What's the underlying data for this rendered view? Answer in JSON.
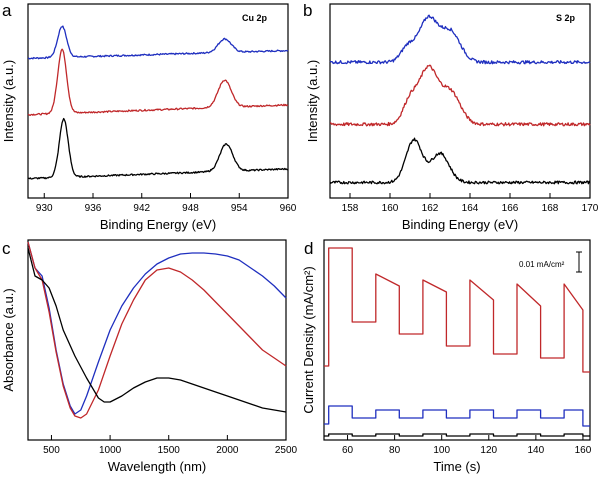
{
  "chart_data": [
    {
      "panel": "a",
      "type": "line",
      "annotation": "Cu 2p",
      "xlabel": "Binding Energy (eV)",
      "ylabel": "Intensity (a.u.)",
      "xlim": [
        928,
        960
      ],
      "ylim": [
        0,
        1
      ],
      "xticks": [
        930,
        936,
        942,
        948,
        954,
        960
      ],
      "yticks_shown": false,
      "series": [
        {
          "name": "top",
          "color": "#1f2fbf",
          "baseline": 0.72,
          "peaks": [
            {
              "center": 932.2,
              "height": 0.16,
              "width": 0.55
            },
            {
              "center": 952.2,
              "height": 0.07,
              "width": 0.8
            }
          ],
          "slope": 0.04,
          "noise": 0.004
        },
        {
          "name": "middle",
          "color": "#c0282a",
          "baseline": 0.43,
          "peaks": [
            {
              "center": 932.2,
              "height": 0.33,
              "width": 0.55
            },
            {
              "center": 952.2,
              "height": 0.14,
              "width": 0.8
            }
          ],
          "slope": 0.05,
          "noise": 0.004
        },
        {
          "name": "bottom",
          "color": "#000000",
          "baseline": 0.1,
          "peaks": [
            {
              "center": 932.4,
              "height": 0.3,
              "width": 0.55
            },
            {
              "center": 952.4,
              "height": 0.14,
              "width": 0.8
            }
          ],
          "slope": 0.05,
          "noise": 0.004
        }
      ]
    },
    {
      "panel": "b",
      "type": "line",
      "annotation": "S 2p",
      "xlabel": "Binding Energy (eV)",
      "ylabel": "Intensity (a.u.)",
      "xlim": [
        157,
        170
      ],
      "ylim": [
        0,
        1
      ],
      "xticks": [
        158,
        160,
        162,
        164,
        166,
        168,
        170
      ],
      "yticks_shown": false,
      "series": [
        {
          "name": "top",
          "color": "#1f2fbf",
          "baseline": 0.7,
          "peaks": [
            {
              "center": 160.9,
              "height": 0.08,
              "width": 0.35
            },
            {
              "center": 161.9,
              "height": 0.22,
              "width": 0.45
            },
            {
              "center": 163.0,
              "height": 0.16,
              "width": 0.5
            }
          ],
          "slope": 0.0,
          "noise": 0.008
        },
        {
          "name": "middle",
          "color": "#c0282a",
          "baseline": 0.38,
          "peaks": [
            {
              "center": 161.0,
              "height": 0.12,
              "width": 0.35
            },
            {
              "center": 161.9,
              "height": 0.28,
              "width": 0.45
            },
            {
              "center": 163.0,
              "height": 0.17,
              "width": 0.5
            }
          ],
          "slope": 0.0,
          "noise": 0.008
        },
        {
          "name": "bottom",
          "color": "#000000",
          "baseline": 0.08,
          "peaks": [
            {
              "center": 161.2,
              "height": 0.22,
              "width": 0.4
            },
            {
              "center": 162.5,
              "height": 0.15,
              "width": 0.45
            }
          ],
          "slope": 0.0,
          "noise": 0.007
        }
      ]
    },
    {
      "panel": "c",
      "type": "line",
      "xlabel": "Wavelength (nm)",
      "ylabel": "Absorbance (a.u.)",
      "xlim": [
        300,
        2500
      ],
      "ylim": [
        0,
        1
      ],
      "xticks": [
        500,
        1000,
        1500,
        2000,
        2500
      ],
      "yticks_shown": false,
      "series": [
        {
          "name": "blue",
          "color": "#1f2fbf",
          "x": [
            300,
            360,
            420,
            480,
            540,
            600,
            660,
            700,
            750,
            800,
            900,
            1000,
            1100,
            1200,
            1300,
            1400,
            1500,
            1600,
            1700,
            1800,
            1900,
            2000,
            2100,
            2200,
            2300,
            2400,
            2500
          ],
          "y": [
            0.99,
            0.86,
            0.82,
            0.66,
            0.45,
            0.28,
            0.17,
            0.13,
            0.15,
            0.22,
            0.39,
            0.55,
            0.67,
            0.76,
            0.83,
            0.88,
            0.91,
            0.93,
            0.935,
            0.935,
            0.93,
            0.92,
            0.9,
            0.86,
            0.82,
            0.77,
            0.71
          ]
        },
        {
          "name": "red",
          "color": "#c0282a",
          "x": [
            300,
            360,
            420,
            480,
            540,
            600,
            660,
            700,
            750,
            800,
            900,
            1000,
            1100,
            1200,
            1300,
            1400,
            1500,
            1600,
            1700,
            1800,
            1900,
            2000,
            2100,
            2200,
            2300,
            2400,
            2500
          ],
          "y": [
            0.99,
            0.86,
            0.8,
            0.64,
            0.44,
            0.27,
            0.16,
            0.12,
            0.11,
            0.13,
            0.25,
            0.42,
            0.58,
            0.7,
            0.8,
            0.85,
            0.86,
            0.84,
            0.8,
            0.75,
            0.69,
            0.63,
            0.57,
            0.51,
            0.45,
            0.41,
            0.37
          ]
        },
        {
          "name": "black",
          "color": "#000000",
          "x": [
            300,
            360,
            420,
            480,
            540,
            600,
            700,
            800,
            900,
            950,
            1000,
            1100,
            1200,
            1300,
            1400,
            1500,
            1600,
            1700,
            1800,
            1900,
            2000,
            2100,
            2200,
            2300,
            2400,
            2500
          ],
          "y": [
            0.96,
            0.82,
            0.8,
            0.76,
            0.67,
            0.55,
            0.42,
            0.31,
            0.21,
            0.19,
            0.19,
            0.22,
            0.26,
            0.29,
            0.31,
            0.31,
            0.3,
            0.28,
            0.26,
            0.24,
            0.22,
            0.2,
            0.18,
            0.16,
            0.15,
            0.14
          ]
        }
      ]
    },
    {
      "panel": "d",
      "type": "line",
      "xlabel": "Time (s)",
      "ylabel": "Current Density (mA/cm²)",
      "xlim": [
        50,
        163
      ],
      "ylim": [
        0,
        1
      ],
      "xticks": [
        60,
        80,
        100,
        120,
        140,
        160
      ],
      "yticks_shown": false,
      "scale_bar_label": "0.01 mA/cm²",
      "light_on_times": [
        52,
        72,
        92,
        112,
        132,
        152
      ],
      "light_off_times": [
        62,
        82,
        102,
        122,
        142,
        160
      ],
      "series": [
        {
          "name": "red",
          "color": "#c0282a",
          "off_level": 0.37,
          "on_start": [
            0.96,
            0.83,
            0.8,
            0.8,
            0.78,
            0.78
          ],
          "on_end": [
            0.96,
            0.77,
            0.74,
            0.7,
            0.67,
            0.65
          ],
          "off_levels": [
            0.59,
            0.53,
            0.47,
            0.43,
            0.41,
            0.34
          ]
        },
        {
          "name": "blue",
          "color": "#1f2fbf",
          "off_level": 0.08,
          "on_start": [
            0.17,
            0.15,
            0.15,
            0.15,
            0.15,
            0.15
          ],
          "on_end": [
            0.17,
            0.15,
            0.15,
            0.15,
            0.15,
            0.15
          ],
          "off_levels": [
            0.11,
            0.11,
            0.11,
            0.11,
            0.11,
            0.07
          ]
        },
        {
          "name": "black",
          "color": "#000000",
          "off_level": 0.02,
          "on_start": [
            0.03,
            0.03,
            0.03,
            0.03,
            0.03,
            0.03
          ],
          "on_end": [
            0.03,
            0.03,
            0.03,
            0.03,
            0.03,
            0.03
          ],
          "off_levels": [
            0.02,
            0.02,
            0.02,
            0.02,
            0.02,
            0.02
          ]
        }
      ]
    }
  ]
}
